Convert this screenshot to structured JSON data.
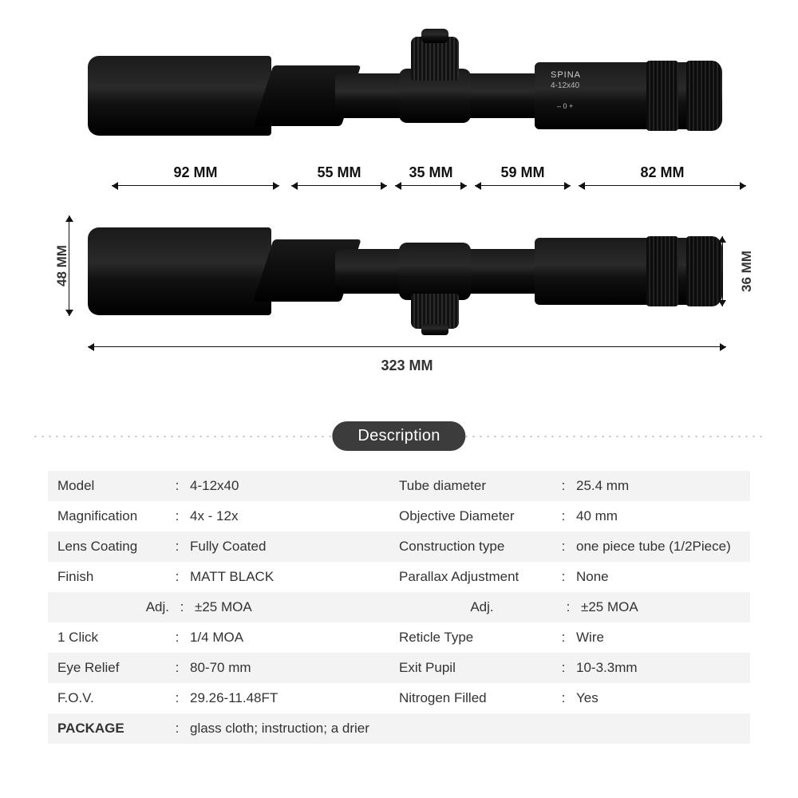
{
  "brand": "SPINA",
  "brand_model": "4-12x40",
  "dial_marks": "– 0 +",
  "dimensions": {
    "segments": [
      "92 MM",
      "55 MM",
      "35 MM",
      "59 MM",
      "82 MM"
    ],
    "total": "323 MM",
    "obj_height": "48 MM",
    "eye_height": "36 MM"
  },
  "desc_heading": "Description",
  "colors": {
    "pill_bg": "#3c3c3c",
    "pill_fg": "#ffffff",
    "stripe_bg": "#f3f3f3",
    "page_bg": "#ffffff",
    "text": "#333333"
  },
  "specs": [
    {
      "k1": "Model",
      "v1": "4-12x40",
      "k2": "Tube diameter",
      "v2": "25.4 mm"
    },
    {
      "k1": "Magnification",
      "v1": "4x - 12x",
      "k2": "Objective Diameter",
      "v2": "40 mm"
    },
    {
      "k1": "Lens Coating",
      "v1": "Fully Coated",
      "k2": "Construction type",
      "v2": "one piece tube (1/2Piece)"
    },
    {
      "k1": "Finish",
      "v1": "MATT BLACK",
      "k2": "Parallax Adjustment",
      "v2": "None"
    },
    {
      "k1": "Adj.",
      "v1": "±25 MOA",
      "k2": "Adj.",
      "v2": "±25 MOA",
      "k1_right": true,
      "k2_center": true
    },
    {
      "k1": "1 Click",
      "v1": "1/4 MOA",
      "k2": "Reticle Type",
      "v2": "Wire"
    },
    {
      "k1": "Eye Relief",
      "v1": "80-70 mm",
      "k2": "Exit Pupil",
      "v2": "10-3.3mm"
    },
    {
      "k1": "F.O.V.",
      "v1": "29.26-11.48FT",
      "k2": "Nitrogen Filled",
      "v2": "Yes"
    },
    {
      "k1": "PACKAGE",
      "v1": "glass cloth; instruction; a drier",
      "full": true,
      "bold_key": true
    }
  ]
}
